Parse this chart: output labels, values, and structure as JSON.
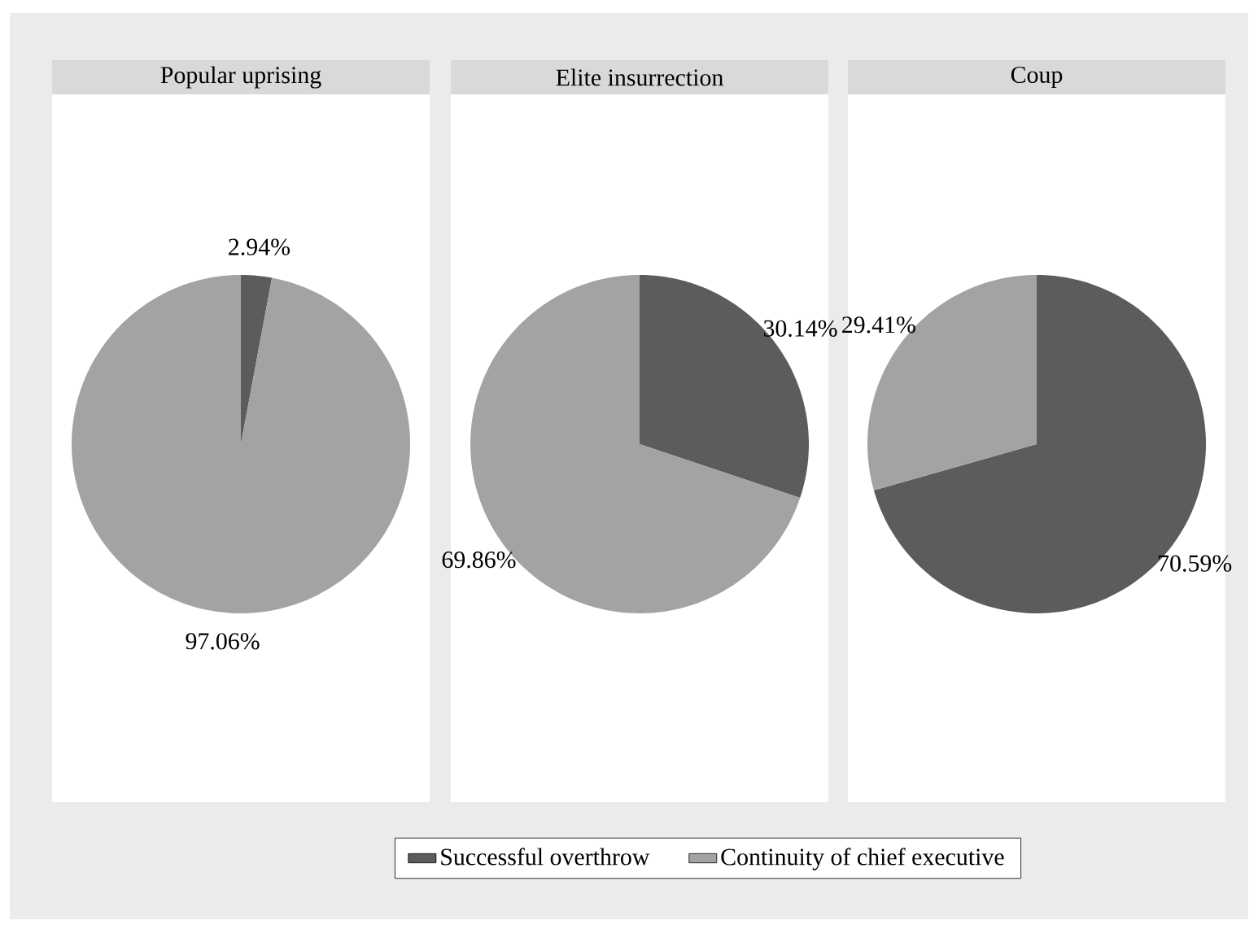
{
  "chart_data": [
    {
      "type": "pie",
      "title": "Popular uprising",
      "categories": [
        "Successful overthrow",
        "Continuity of chief executive"
      ],
      "values": [
        2.94,
        97.06
      ],
      "colors": [
        "#5c5c5c",
        "#a3a3a3"
      ],
      "value_labels": [
        "2.94%",
        "97.06%"
      ],
      "legend": "bottom"
    },
    {
      "type": "pie",
      "title": "Elite insurrection",
      "values": [
        30.14,
        69.86
      ],
      "colors": [
        "#5c5c5c",
        "#a3a3a3"
      ],
      "value_labels": [
        "30.14%",
        "69.86%"
      ]
    },
    {
      "type": "pie",
      "title": "Coup",
      "values": [
        70.59,
        29.41
      ],
      "colors": [
        "#5c5c5c",
        "#a3a3a3"
      ],
      "value_labels": [
        "70.59%",
        "29.41%"
      ]
    }
  ]
}
